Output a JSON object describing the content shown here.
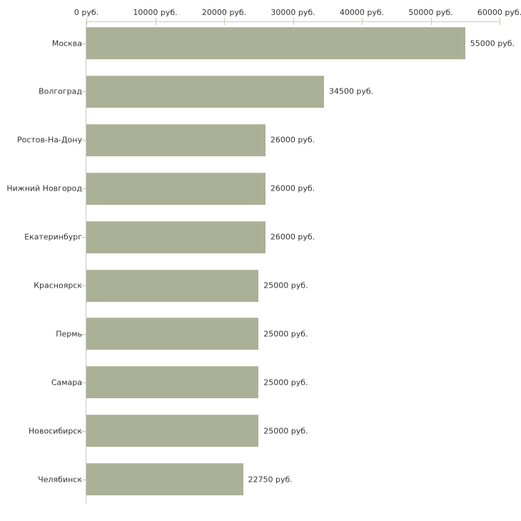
{
  "chart_data": {
    "type": "bar",
    "orientation": "horizontal",
    "title": "",
    "xlabel": "",
    "ylabel": "",
    "categories": [
      "Москва",
      "Волгоград",
      "Ростов-На-Дону",
      "Нижний Новгород",
      "Екатеринбург",
      "Красноярск",
      "Пермь",
      "Самара",
      "Новосибирск",
      "Челябинск"
    ],
    "values": [
      55000,
      34500,
      26000,
      26000,
      26000,
      25000,
      25000,
      25000,
      25000,
      22750
    ],
    "value_labels": [
      "55000 руб.",
      "34500 руб.",
      "26000 руб.",
      "26000 руб.",
      "26000 руб.",
      "25000 руб.",
      "25000 руб.",
      "25000 руб.",
      "25000 руб.",
      "22750 руб."
    ],
    "x_axis": {
      "position": "top",
      "range": [
        0,
        60000
      ],
      "ticks": [
        0,
        10000,
        20000,
        30000,
        40000,
        50000,
        60000
      ],
      "tick_labels": [
        "0 руб.",
        "10000 руб.",
        "20000 руб.",
        "30000 руб.",
        "40000 руб.",
        "50000 руб.",
        "60000 руб."
      ]
    },
    "grid": false,
    "legend": false,
    "colors": {
      "bar": "#abb196",
      "bar_edge": "#b9bea9",
      "axis_line": "#c9c9c9",
      "tick": "#c6c8a9",
      "text": "#333333",
      "background": "#ffffff"
    }
  }
}
